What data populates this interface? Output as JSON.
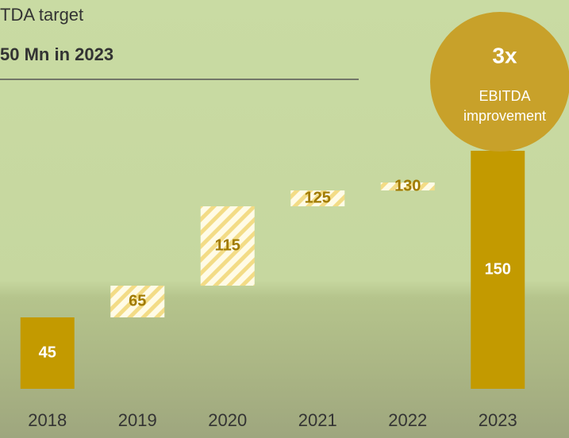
{
  "chart_data": {
    "type": "waterfall",
    "title": "TDA target",
    "subtitle": "50 Mn in 2023",
    "categories": [
      "2018",
      "2019",
      "2020",
      "2021",
      "2022",
      "2023"
    ],
    "values": [
      45,
      65,
      115,
      125,
      130,
      150
    ],
    "totals": [
      true,
      false,
      false,
      false,
      false,
      true
    ],
    "color": "#c39a00",
    "ylim": [
      0,
      245
    ],
    "annotation": {
      "value": "3x",
      "lines": [
        "EBITDA",
        "improvement"
      ],
      "color": "#c8a12a"
    }
  }
}
